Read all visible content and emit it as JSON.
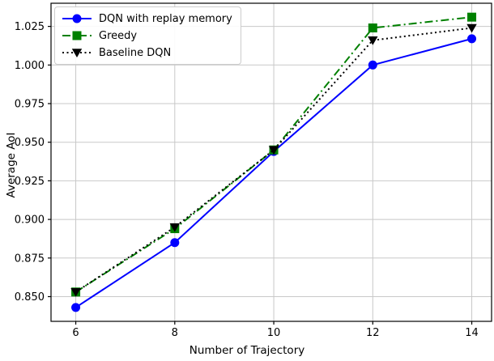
{
  "chart_data": {
    "type": "line",
    "title": "",
    "xlabel": "Number of Trajectory",
    "ylabel": "Average AoI",
    "grid": true,
    "legend_position": "upper-left",
    "xlim": [
      5.5,
      14.4
    ],
    "ylim": [
      0.834,
      1.04
    ],
    "xticks": [
      "6",
      "8",
      "10",
      "12",
      "14"
    ],
    "yticks": [
      "0.850",
      "0.875",
      "0.900",
      "0.925",
      "0.950",
      "0.975",
      "1.000",
      "1.025"
    ],
    "x": [
      6,
      8,
      10,
      12,
      14
    ],
    "series": [
      {
        "name": "DQN with replay memory",
        "color": "#0000ff",
        "line_style": "solid",
        "marker": "circle",
        "values": [
          0.843,
          0.885,
          0.944,
          1.0,
          1.017
        ]
      },
      {
        "name": "Greedy",
        "color": "#008000",
        "line_style": "dashdot",
        "marker": "square",
        "values": [
          0.853,
          0.894,
          0.945,
          1.024,
          1.031
        ]
      },
      {
        "name": "Baseline DQN",
        "color": "#000000",
        "line_style": "dotted",
        "marker": "triangle-down",
        "values": [
          0.853,
          0.895,
          0.945,
          1.016,
          1.024
        ]
      }
    ],
    "style": {
      "grid_color": "#c8c8c8",
      "frame_color": "#000000",
      "background": "#ffffff"
    }
  }
}
